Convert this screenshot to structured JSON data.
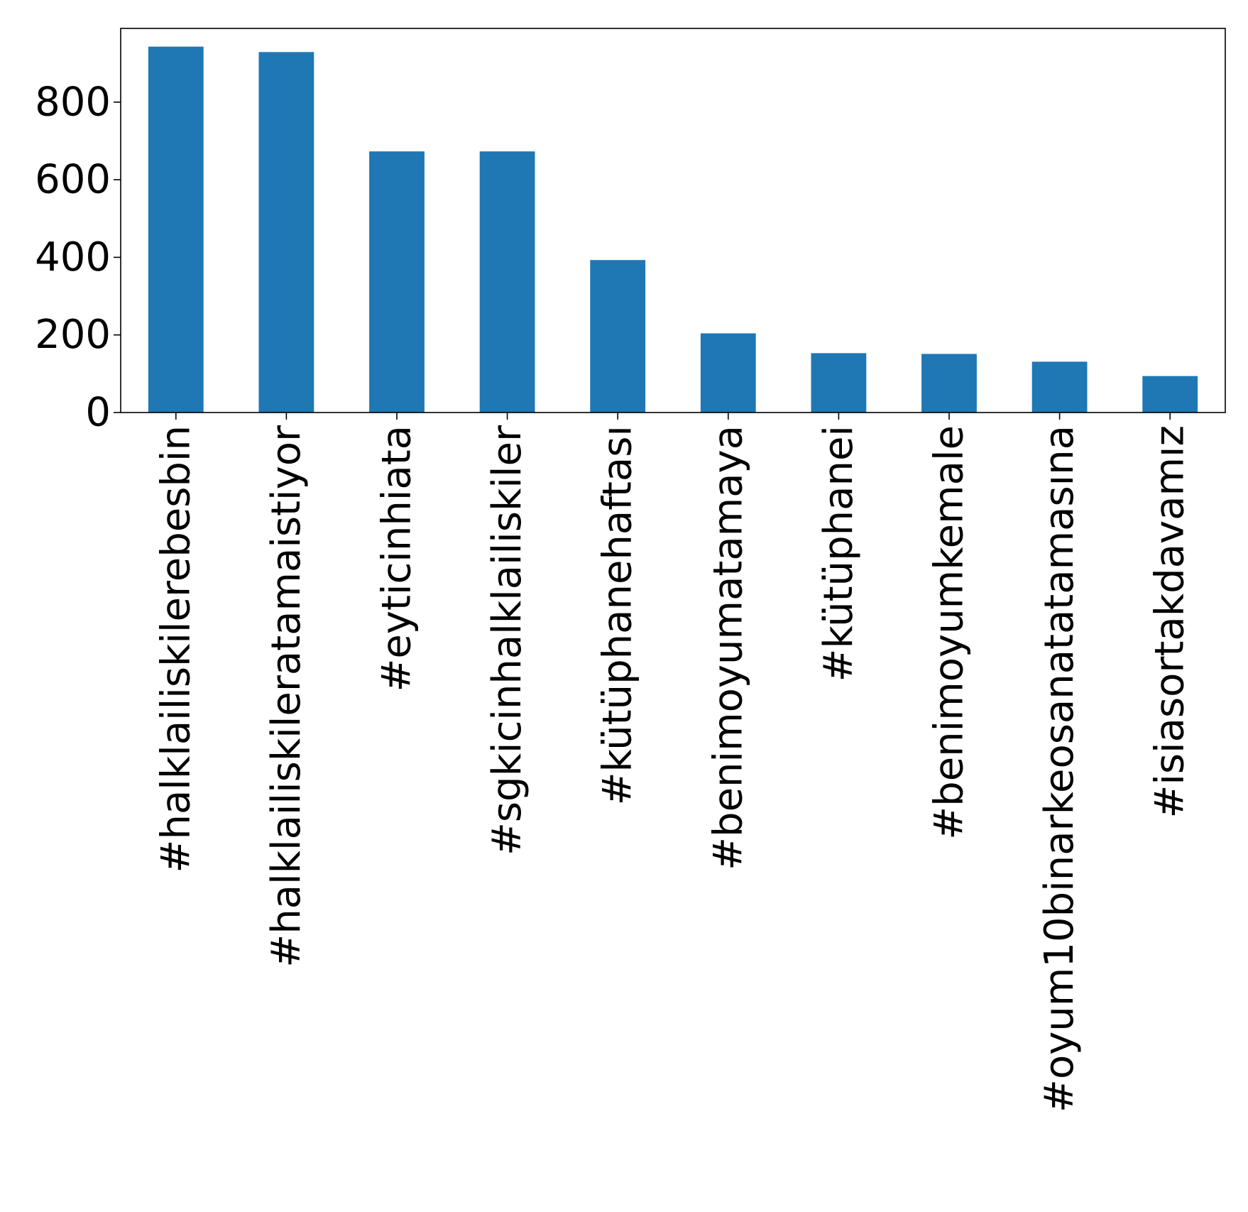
{
  "chart_data": {
    "type": "bar",
    "categories": [
      "#halklailiskilerebesbin",
      "#halklailiskileratamaistiyor",
      "#eyticinhiata",
      "#sgkicinhalklailiskiler",
      "#kütüphanehaftası",
      "#benimoyumatamaya",
      "#kütüphanei",
      "#benimoyumkemale",
      "#oyum10binarkeosanatatamasına",
      "#isiasortakdavamız"
    ],
    "values": [
      943,
      929,
      673,
      673,
      393,
      204,
      153,
      151,
      131,
      94
    ],
    "title": "",
    "xlabel": "",
    "ylabel": "",
    "ylim": [
      0,
      990
    ],
    "yticks": [
      0,
      200,
      400,
      600,
      800
    ],
    "bar_color": "#1f77b4",
    "grid": false,
    "legend": "none"
  }
}
